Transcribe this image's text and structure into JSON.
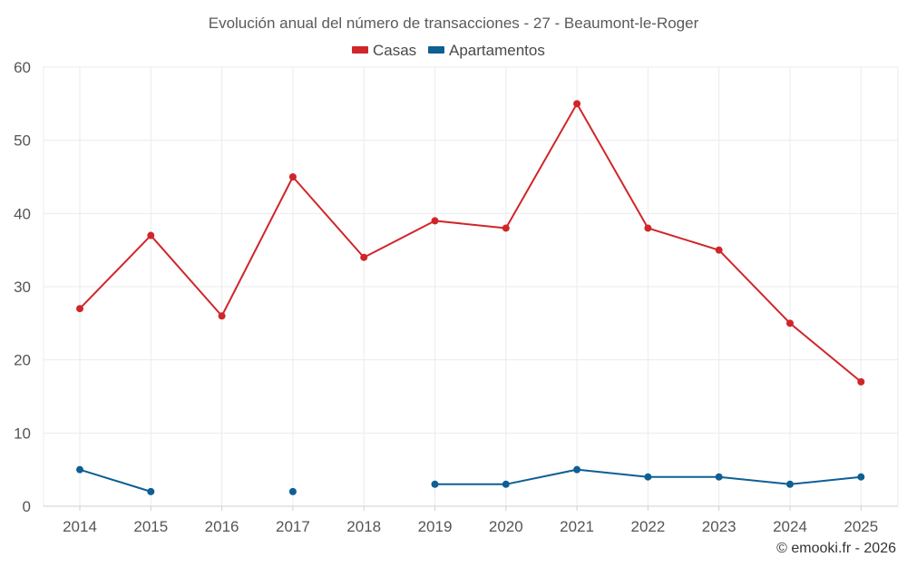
{
  "chart_data": {
    "type": "line",
    "title": "Evolución anual del número de transacciones - 27 - Beaumont-le-Roger",
    "categories": [
      "2014",
      "2015",
      "2016",
      "2017",
      "2018",
      "2019",
      "2020",
      "2021",
      "2022",
      "2023",
      "2024",
      "2025"
    ],
    "series": [
      {
        "name": "Casas",
        "color": "#d0262a",
        "values": [
          27,
          37,
          26,
          45,
          34,
          39,
          38,
          55,
          38,
          35,
          25,
          17
        ]
      },
      {
        "name": "Apartamentos",
        "color": "#0e5f94",
        "values": [
          5,
          2,
          null,
          2,
          null,
          3,
          3,
          5,
          4,
          4,
          3,
          4
        ]
      }
    ],
    "ylim": [
      0,
      60
    ],
    "yticks": [
      0,
      10,
      20,
      30,
      40,
      50,
      60
    ],
    "grid": true,
    "legend_position": "top-center"
  },
  "credit": "© emooki.fr - 2026"
}
